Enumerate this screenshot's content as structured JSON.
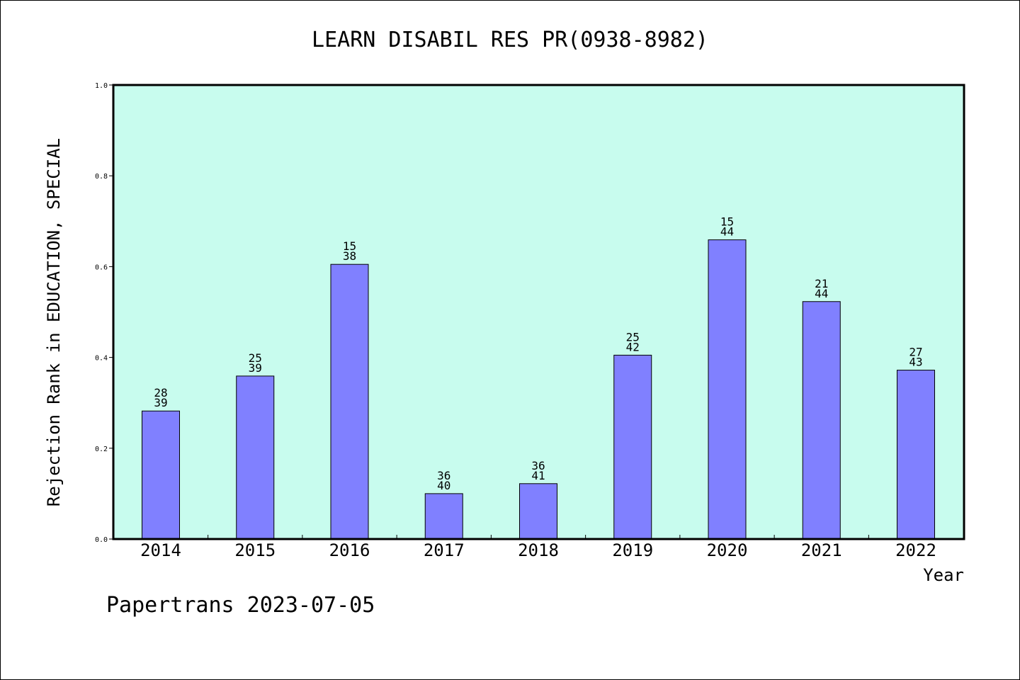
{
  "chart_data": {
    "type": "bar",
    "title": "LEARN DISABIL RES PR(0938-8982)",
    "xlabel": "Year",
    "ylabel": "Rejection Rank in EDUCATION, SPECIAL",
    "ylim": [
      0,
      1.0
    ],
    "yticks": [
      "0.0",
      "0.2",
      "0.4",
      "0.6",
      "0.8",
      "1.0"
    ],
    "ytick_values": [
      0,
      0.2,
      0.4,
      0.6,
      0.8,
      1.0
    ],
    "categories": [
      "2014",
      "2015",
      "2016",
      "2017",
      "2018",
      "2019",
      "2020",
      "2021",
      "2022"
    ],
    "values": [
      0.282,
      0.359,
      0.605,
      0.1,
      0.122,
      0.405,
      0.659,
      0.523,
      0.372
    ],
    "bar_labels": [
      {
        "top": "28",
        "bottom": "39"
      },
      {
        "top": "25",
        "bottom": "39"
      },
      {
        "top": "15",
        "bottom": "38"
      },
      {
        "top": "36",
        "bottom": "40"
      },
      {
        "top": "36",
        "bottom": "41"
      },
      {
        "top": "25",
        "bottom": "42"
      },
      {
        "top": "15",
        "bottom": "44"
      },
      {
        "top": "21",
        "bottom": "44"
      },
      {
        "top": "27",
        "bottom": "43"
      }
    ],
    "grid": false,
    "colors": {
      "plot_background": "#c8fcee",
      "bar_fill": "#8080ff",
      "bar_edge": "#000000"
    }
  },
  "footer": {
    "text": "Papertrans 2023-07-05"
  }
}
